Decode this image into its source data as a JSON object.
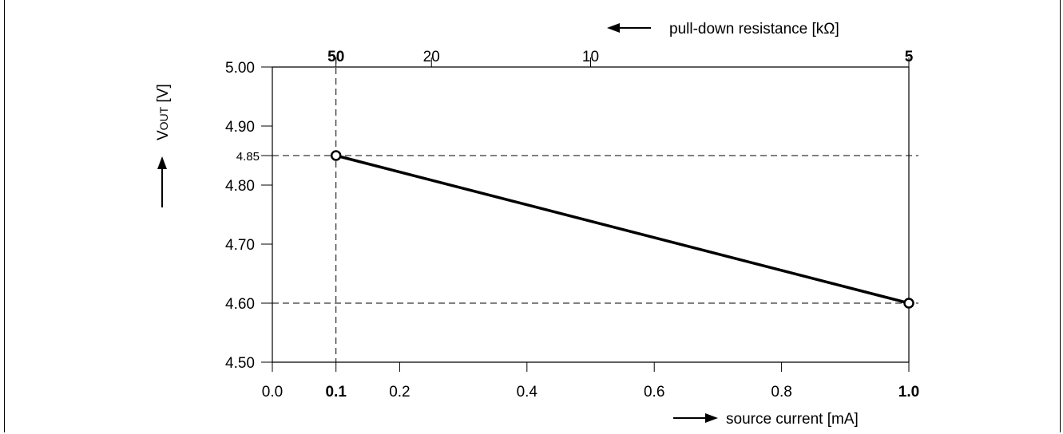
{
  "chart_data": {
    "type": "line",
    "x_axis": {
      "label": "source current  [mA]",
      "range": [
        0.0,
        1.0
      ],
      "ticks": [
        "0.0",
        "0.1",
        "0.2",
        "0.4",
        "0.6",
        "0.8",
        "1.0"
      ],
      "tick_values": [
        0.0,
        0.1,
        0.2,
        0.4,
        0.6,
        0.8,
        1.0
      ],
      "bold_ticks": [
        "0.1",
        "1.0"
      ]
    },
    "top_axis": {
      "label": "pull-down resistance [kΩ]",
      "ticks": [
        "50",
        "20",
        "10",
        "5"
      ],
      "tick_values": [
        50,
        20,
        10,
        5
      ],
      "bold_ticks": [
        "50",
        "5"
      ]
    },
    "y_axis": {
      "label_main": "V",
      "label_sub": "OUT",
      "label_unit": " [V]",
      "range": [
        4.5,
        5.0
      ],
      "ticks": [
        "4.50",
        "4.60",
        "4.70",
        "4.80",
        "4.90",
        "5.00"
      ],
      "tick_values": [
        4.5,
        4.6,
        4.7,
        4.8,
        4.9,
        5.0
      ],
      "extra_tick": {
        "label": "4.85",
        "value": 4.85
      }
    },
    "series": [
      {
        "x": [
          0.1,
          1.0
        ],
        "y": [
          4.85,
          4.6
        ]
      }
    ],
    "reference_lines": {
      "horizontal": [
        4.85,
        4.6
      ],
      "vertical": [
        0.1
      ]
    },
    "grid": false
  }
}
